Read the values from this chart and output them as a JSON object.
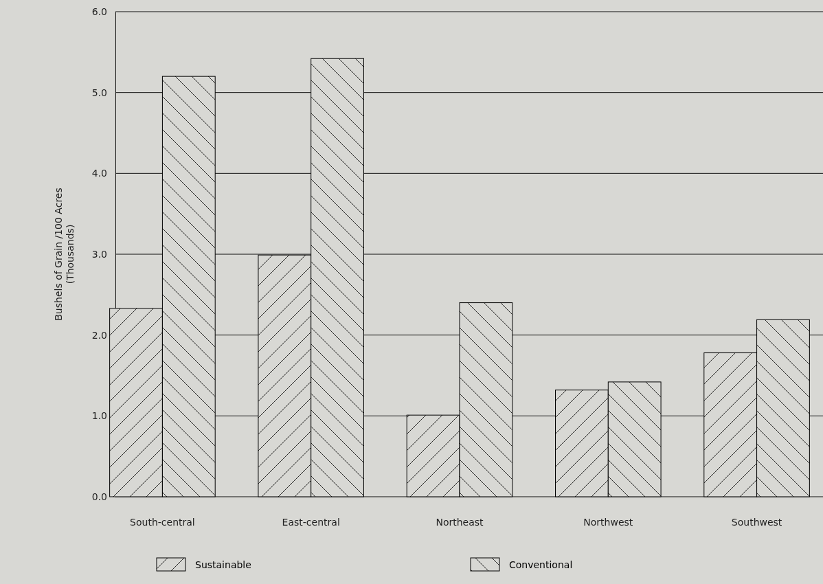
{
  "chart_data": {
    "type": "bar",
    "ylabel": "Bushels of Grain /100 Acres\n(Thousands)",
    "categories": [
      "South-central",
      "East-central",
      "Northeast",
      "Northwest",
      "Southwest"
    ],
    "series": [
      {
        "name": "Sustainable",
        "color": "#000000",
        "values": [
          2.33,
          2.99,
          1.01,
          1.32,
          1.78
        ]
      },
      {
        "name": "Conventional",
        "color": "#000000",
        "values": [
          5.2,
          5.42,
          2.4,
          1.42,
          2.19
        ]
      }
    ],
    "ylim": [
      0,
      6
    ],
    "yticks": [
      {
        "value": 0,
        "label": "0.0"
      },
      {
        "value": 1,
        "label": "1.0"
      },
      {
        "value": 2,
        "label": "2.0"
      },
      {
        "value": 3,
        "label": "3.0"
      },
      {
        "value": 4,
        "label": "4.0"
      },
      {
        "value": 5,
        "label": "5.0"
      },
      {
        "value": 6,
        "label": "6.0"
      }
    ],
    "grid": "y",
    "legend": "bottom"
  }
}
